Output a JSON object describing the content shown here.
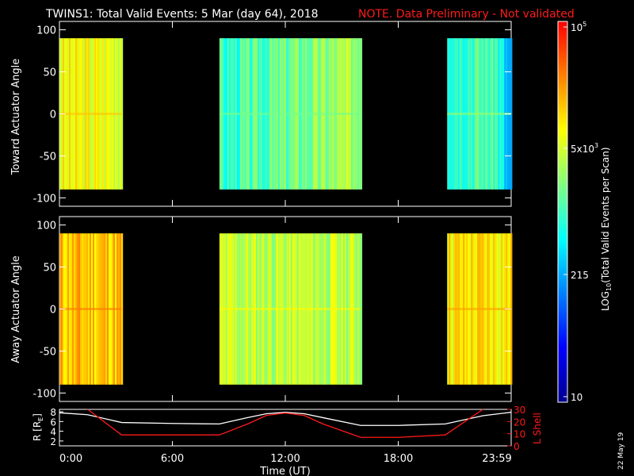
{
  "header": {
    "title": "TWINS1: Total Valid Events:  5 Mar (day  64), 2018",
    "note": "NOTE. Data Preliminary - Not validated"
  },
  "panels": [
    {
      "ylabel": "Toward Actuator Angle",
      "yticks": [
        "100",
        "50",
        "0",
        "-50",
        "-100"
      ]
    },
    {
      "ylabel": "Away Actuator Angle",
      "yticks": [
        "100",
        "50",
        "0",
        "-50",
        "-100"
      ]
    }
  ],
  "orbit": {
    "left_label": "R [R",
    "left_sub": "E",
    "left_close": "]",
    "left_ticks": [
      "8",
      "6",
      "4",
      "2"
    ],
    "right_label": "L Shell",
    "right_ticks": [
      "30",
      "20",
      "10",
      "0"
    ]
  },
  "colorbar": {
    "label": "LOG",
    "label_sub": "10",
    "label_rest": "(Total Valid Events per Scan)",
    "ticks": [
      {
        "base": "10",
        "exp": "5"
      },
      {
        "base": "5x10",
        "exp": "3"
      },
      {
        "base": "215",
        "exp": ""
      },
      {
        "base": "10",
        "exp": ""
      }
    ],
    "colors": [
      "#00008f",
      "#0000ff",
      "#0080ff",
      "#00ffff",
      "#80ff80",
      "#ffff00",
      "#ff8000",
      "#ff0000"
    ]
  },
  "xaxis": {
    "label": "Time (UT)",
    "ticks": [
      "0:00",
      "6:00",
      "12:00",
      "18:00",
      "23:59"
    ]
  },
  "date_stamp": "22 May 19",
  "chart_data": [
    {
      "type": "heatmap",
      "title": "TWINS1: Total Valid Events:  5 Mar (day  64), 2018",
      "xlabel": "Time (UT)",
      "ylabel": "Toward Actuator Angle",
      "xlim": [
        0,
        24
      ],
      "ylim": [
        -110,
        110
      ],
      "angle_range": [
        -90,
        90
      ],
      "colorscale": "log10 counts 10 to 1e5",
      "segments": [
        {
          "start": 0,
          "end": 3.3,
          "level": 0.7
        },
        {
          "start": 8.5,
          "end": 16.0,
          "level": 0.48
        },
        {
          "start": 20.6,
          "end": 24.0,
          "level": 0.52
        }
      ]
    },
    {
      "type": "heatmap",
      "xlabel": "Time (UT)",
      "ylabel": "Away Actuator Angle",
      "xlim": [
        0,
        24
      ],
      "ylim": [
        -110,
        110
      ],
      "angle_range": [
        -90,
        90
      ],
      "segments": [
        {
          "start": 0,
          "end": 3.3,
          "level": 0.78
        },
        {
          "start": 8.5,
          "end": 16.0,
          "level": 0.64
        },
        {
          "start": 20.6,
          "end": 24.0,
          "level": 0.74
        }
      ]
    },
    {
      "type": "line",
      "xlabel": "Time (UT)",
      "x": [
        0,
        1.5,
        3.3,
        6,
        8.5,
        10,
        11,
        12,
        13,
        14,
        16,
        18,
        20.5,
        22.5,
        24
      ],
      "series": [
        {
          "name": "R [RE]",
          "values": [
            7.8,
            7.4,
            5.8,
            5.6,
            5.5,
            6.8,
            7.6,
            7.9,
            7.6,
            6.8,
            5.2,
            5.2,
            5.5,
            7.2,
            7.9
          ]
        },
        {
          "name": "L Shell",
          "values": [
            null,
            30,
            9,
            9,
            9,
            18,
            25,
            27,
            25,
            18,
            7,
            7,
            9,
            30,
            null
          ]
        }
      ],
      "ylim_left": [
        1,
        8.5
      ],
      "ylim_right": [
        0,
        30
      ]
    }
  ]
}
